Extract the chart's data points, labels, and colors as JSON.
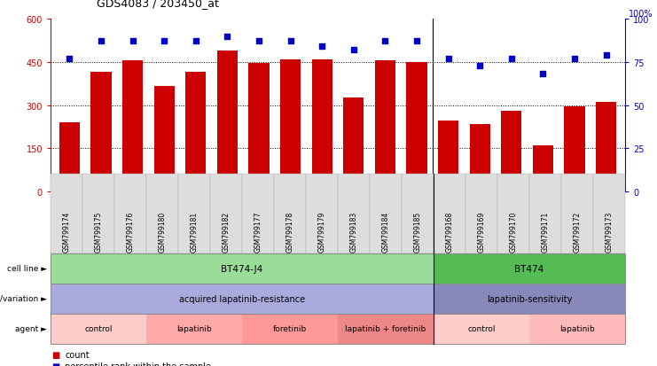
{
  "title": "GDS4083 / 203450_at",
  "samples": [
    "GSM799174",
    "GSM799175",
    "GSM799176",
    "GSM799180",
    "GSM799181",
    "GSM799182",
    "GSM799177",
    "GSM799178",
    "GSM799179",
    "GSM799183",
    "GSM799184",
    "GSM799185",
    "GSM799168",
    "GSM799169",
    "GSM799170",
    "GSM799171",
    "GSM799172",
    "GSM799173"
  ],
  "counts": [
    240,
    415,
    455,
    365,
    415,
    490,
    445,
    460,
    460,
    325,
    455,
    450,
    245,
    235,
    280,
    160,
    295,
    310
  ],
  "percentile_ranks": [
    77,
    87,
    87,
    87,
    87,
    90,
    87,
    87,
    84,
    82,
    87,
    87,
    77,
    73,
    77,
    68,
    77,
    79
  ],
  "ylim_left": [
    0,
    600
  ],
  "ylim_right": [
    0,
    100
  ],
  "yticks_left": [
    0,
    150,
    300,
    450,
    600
  ],
  "yticks_right": [
    0,
    25,
    50,
    75,
    100
  ],
  "bar_color": "#CC0000",
  "dot_color": "#0000CC",
  "cell_line_groups": [
    {
      "label": "BT474-J4",
      "start": 0,
      "end": 11,
      "color": "#99DD99"
    },
    {
      "label": "BT474",
      "start": 12,
      "end": 17,
      "color": "#55BB55"
    }
  ],
  "genotype_groups": [
    {
      "label": "acquired lapatinib-resistance",
      "start": 0,
      "end": 11,
      "color": "#AAAADD"
    },
    {
      "label": "lapatinib-sensitivity",
      "start": 12,
      "end": 17,
      "color": "#8888BB"
    }
  ],
  "agent_groups": [
    {
      "label": "control",
      "start": 0,
      "end": 2,
      "color": "#FFCCCC"
    },
    {
      "label": "lapatinib",
      "start": 3,
      "end": 5,
      "color": "#FFAAAA"
    },
    {
      "label": "foretinib",
      "start": 6,
      "end": 8,
      "color": "#FF9999"
    },
    {
      "label": "lapatinib + foretinib",
      "start": 9,
      "end": 11,
      "color": "#EE8888"
    },
    {
      "label": "control",
      "start": 12,
      "end": 14,
      "color": "#FFCCCC"
    },
    {
      "label": "lapatinib",
      "start": 15,
      "end": 17,
      "color": "#FFBBBB"
    }
  ],
  "separator_after": 11,
  "fig_w": 7.41,
  "fig_h": 4.14,
  "dpi": 100
}
